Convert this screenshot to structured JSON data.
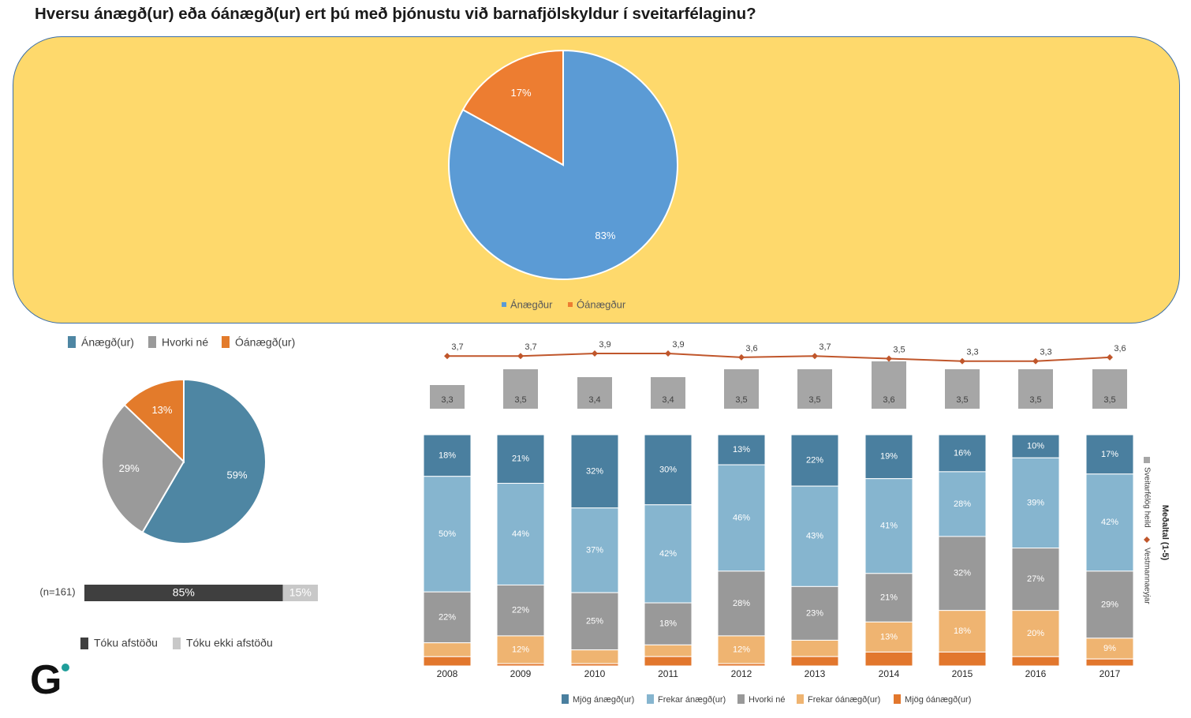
{
  "title": "Hversu ánægð(ur) eða óánægð(ur) ert þú með þjónustu við barnafjölskyldur í sveitarfélaginu?",
  "chart_data": [
    {
      "type": "pie",
      "id": "top-pie",
      "slices": [
        {
          "label": "Ánægður",
          "value": 83,
          "text": "83%",
          "color": "#5b9bd5"
        },
        {
          "label": "Óánægður",
          "value": 17,
          "text": "17%",
          "color": "#ed7d31"
        }
      ]
    },
    {
      "type": "pie",
      "id": "left-pie",
      "legend": [
        "Ánægð(ur)",
        "Hvorki né",
        "Óánægð(ur)"
      ],
      "slices": [
        {
          "label": "Ánægð(ur)",
          "value": 59,
          "text": "59%",
          "color": "#4e86a3"
        },
        {
          "label": "Hvorki né",
          "value": 29,
          "text": "29%",
          "color": "#9a9a9a"
        },
        {
          "label": "Óánægð(ur)",
          "value": 13,
          "text": "13%",
          "color": "#e37b2b"
        }
      ]
    },
    {
      "type": "bar",
      "id": "response-bar",
      "n_label": "(n=161)",
      "segments": [
        {
          "label": "Tóku afstöðu",
          "value": 85,
          "text": "85%",
          "color": "#3f3f3f"
        },
        {
          "label": "Tóku ekki afstöðu",
          "value": 15,
          "text": "15%",
          "color": "#c8c8c8"
        }
      ]
    },
    {
      "type": "line",
      "id": "mean-chart",
      "legend_title": "Meðaltal (1-5)",
      "legend": [
        "Sveitarfélög heild",
        "Vestmannaeyjar"
      ],
      "years": [
        "2008",
        "2009",
        "2010",
        "2011",
        "2012",
        "2013",
        "2014",
        "2015",
        "2016",
        "2017"
      ],
      "line_values": [
        3.7,
        3.7,
        3.9,
        3.9,
        3.6,
        3.7,
        3.5,
        3.3,
        3.3,
        3.6
      ],
      "line_labels": [
        "3,7",
        "3,7",
        "3,9",
        "3,9",
        "3,6",
        "3,7",
        "3,5",
        "3,3",
        "3,3",
        "3,6"
      ],
      "bar_values": [
        3.3,
        3.5,
        3.4,
        3.4,
        3.5,
        3.5,
        3.6,
        3.5,
        3.5,
        3.5
      ],
      "bar_labels": [
        "3,3",
        "3,5",
        "3,4",
        "3,4",
        "3,5",
        "3,5",
        "3,6",
        "3,5",
        "3,5",
        "3,5"
      ],
      "line_color": "#c0562b",
      "bar_color": "#a6a6a6"
    },
    {
      "type": "bar",
      "id": "stacked-chart",
      "stacked": true,
      "categories": [
        "2008",
        "2009",
        "2010",
        "2011",
        "2012",
        "2013",
        "2014",
        "2015",
        "2016",
        "2017"
      ],
      "series": [
        {
          "name": "Mjög ánægð(ur)",
          "color": "#4a7f9f",
          "values": [
            18,
            21,
            32,
            30,
            13,
            22,
            19,
            16,
            10,
            17
          ],
          "labels": [
            "18%",
            "21%",
            "32%",
            "30%",
            "13%",
            "22%",
            "19%",
            "16%",
            "10%",
            "17%"
          ]
        },
        {
          "name": "Frekar ánægð(ur)",
          "color": "#86b5cf",
          "values": [
            50,
            44,
            37,
            42,
            46,
            43,
            41,
            28,
            39,
            42
          ],
          "labels": [
            "50%",
            "44%",
            "37%",
            "42%",
            "46%",
            "43%",
            "41%",
            "28%",
            "39%",
            "42%"
          ]
        },
        {
          "name": "Hvorki né",
          "color": "#999999",
          "values": [
            22,
            22,
            25,
            18,
            28,
            23,
            21,
            32,
            27,
            29
          ],
          "labels": [
            "22%",
            "22%",
            "25%",
            "18%",
            "28%",
            "23%",
            "21%",
            "32%",
            "27%",
            "29%"
          ]
        },
        {
          "name": "Frekar óánægð(ur)",
          "color": "#efb471",
          "values": [
            6,
            12,
            6,
            5,
            12,
            7,
            13,
            18,
            20,
            9
          ],
          "labels": [
            "",
            "12%",
            "",
            "",
            "12%",
            "",
            "13%",
            "18%",
            "20%",
            "9%"
          ]
        },
        {
          "name": "Mjög óánægð(ur)",
          "color": "#e2772d",
          "values": [
            4,
            1,
            1,
            4,
            1,
            4,
            6,
            6,
            4,
            3
          ],
          "labels": [
            "",
            "",
            "",
            "",
            "",
            "",
            "",
            "",
            "",
            ""
          ]
        }
      ]
    }
  ],
  "logo_text": "G"
}
